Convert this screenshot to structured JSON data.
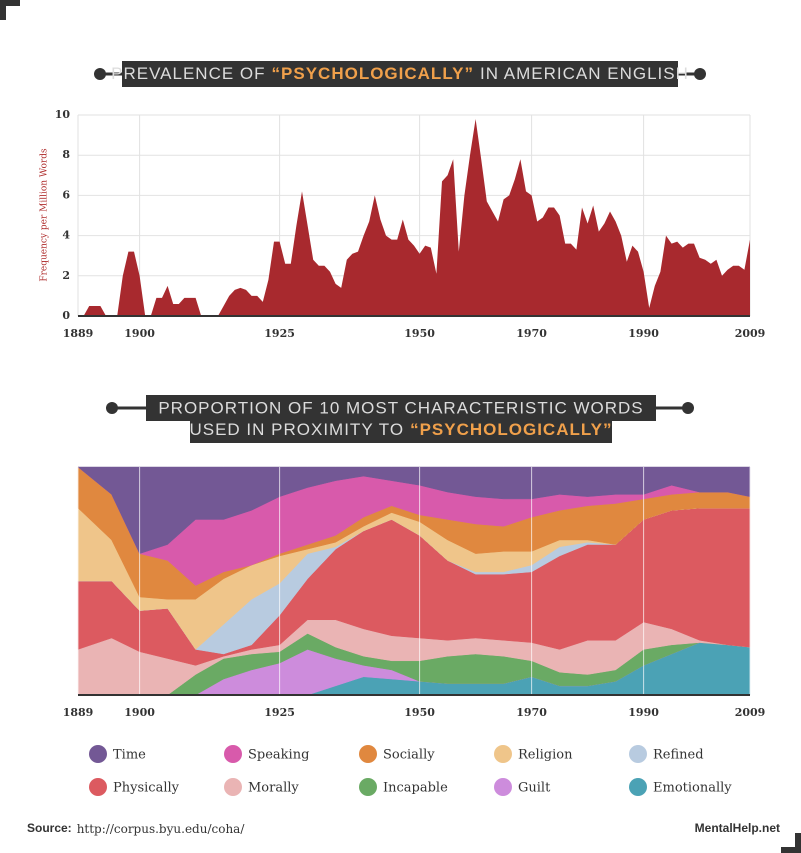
{
  "chart_data": [
    {
      "type": "area",
      "title": [
        "PREVALENCE OF",
        "“PSYCHOLOGICALLY”",
        "IN AMERICAN ENGLISH"
      ],
      "y_label": "Frequency per Million Words",
      "color": "#a8292e",
      "x": [
        1889,
        1890,
        1891,
        1892,
        1893,
        1894,
        1895,
        1896,
        1897,
        1898,
        1899,
        1900,
        1901,
        1902,
        1903,
        1904,
        1905,
        1906,
        1907,
        1908,
        1909,
        1910,
        1911,
        1912,
        1913,
        1914,
        1915,
        1916,
        1917,
        1918,
        1919,
        1920,
        1921,
        1922,
        1923,
        1924,
        1925,
        1926,
        1927,
        1928,
        1929,
        1930,
        1931,
        1932,
        1933,
        1934,
        1935,
        1936,
        1937,
        1938,
        1939,
        1940,
        1941,
        1942,
        1943,
        1944,
        1945,
        1946,
        1947,
        1948,
        1949,
        1950,
        1951,
        1952,
        1953,
        1954,
        1955,
        1956,
        1957,
        1958,
        1959,
        1960,
        1961,
        1962,
        1963,
        1964,
        1965,
        1966,
        1967,
        1968,
        1969,
        1970,
        1971,
        1972,
        1973,
        1974,
        1975,
        1976,
        1977,
        1978,
        1979,
        1980,
        1981,
        1982,
        1983,
        1984,
        1985,
        1986,
        1987,
        1988,
        1989,
        1990,
        1991,
        1992,
        1993,
        1994,
        1995,
        1996,
        1997,
        1998,
        1999,
        2000,
        2001,
        2002,
        2003,
        2004,
        2005,
        2006,
        2007,
        2008,
        2009
      ],
      "values": [
        0,
        0,
        0.5,
        0.5,
        0.5,
        0,
        0,
        0,
        2,
        3.2,
        3.2,
        2,
        0,
        0,
        0.9,
        0.9,
        1.5,
        0.6,
        0.6,
        0.9,
        0.9,
        0.9,
        0,
        0,
        0,
        0,
        0.5,
        1,
        1.3,
        1.4,
        1.3,
        1,
        1,
        0.7,
        1.8,
        3.7,
        3.7,
        2.6,
        2.6,
        4.5,
        6.2,
        4.5,
        2.8,
        2.5,
        2.5,
        2.2,
        1.6,
        1.4,
        2.8,
        3.1,
        3.2,
        4,
        4.7,
        6,
        4.8,
        4,
        3.8,
        3.8,
        4.8,
        3.8,
        3.5,
        3.1,
        3.5,
        3.4,
        2.1,
        6.7,
        7,
        7.8,
        3.2,
        6,
        8,
        9.8,
        7.8,
        5.7,
        5.2,
        4.7,
        5.8,
        6,
        6.8,
        7.8,
        6.2,
        6,
        4.7,
        4.9,
        5.4,
        5.4,
        5,
        3.6,
        3.6,
        3.3,
        5.4,
        4.6,
        5.5,
        4.2,
        4.6,
        5.2,
        4.7,
        4,
        2.7,
        3.5,
        3.2,
        2.2,
        0.4,
        1.5,
        2.2,
        4,
        3.6,
        3.7,
        3.4,
        3.6,
        3.6,
        2.9,
        2.8,
        2.6,
        2.8,
        2,
        2.3,
        2.5,
        2.5,
        2.3,
        3.8
      ],
      "xlim": [
        1889,
        2009
      ],
      "xticks": [
        1889,
        1900,
        1925,
        1950,
        1970,
        1990,
        2009
      ],
      "ylim": [
        0,
        10
      ],
      "yticks": [
        0,
        2,
        4,
        6,
        8,
        10
      ],
      "grid": true
    },
    {
      "type": "stacked_area",
      "title": [
        "PROPORTION OF 10 MOST CHARACTERISTIC WORDS",
        "USED IN PROXIMITY TO",
        "“PSYCHOLOGICALLY”"
      ],
      "x": [
        1889,
        1895,
        1900,
        1905,
        1910,
        1915,
        1920,
        1925,
        1930,
        1935,
        1940,
        1945,
        1950,
        1955,
        1960,
        1965,
        1970,
        1975,
        1980,
        1985,
        1990,
        1995,
        2000,
        2005,
        2009
      ],
      "xlim": [
        1889,
        2009
      ],
      "xticks": [
        1889,
        1900,
        1925,
        1950,
        1970,
        1990,
        2009
      ],
      "ylim": [
        0,
        100
      ],
      "grid": true,
      "series": [
        {
          "name": "Time",
          "color": "#735895",
          "values": [
            0,
            12,
            38,
            34,
            23,
            23,
            19,
            13,
            9,
            6,
            4,
            6,
            8,
            11,
            13,
            14,
            14,
            12,
            13,
            12,
            12,
            8,
            11,
            11,
            13
          ]
        },
        {
          "name": "Speaking",
          "color": "#d85aab",
          "values": [
            0,
            0,
            0,
            7,
            29,
            23,
            24,
            25,
            25,
            24,
            18,
            11,
            13,
            12,
            12,
            12,
            8,
            7,
            4,
            4,
            2,
            4,
            0,
            0,
            0
          ]
        },
        {
          "name": "Socially",
          "color": "#e0883f",
          "values": [
            18,
            20,
            19,
            17,
            6,
            3,
            0,
            1,
            2,
            3,
            4,
            3,
            3,
            9,
            13,
            11,
            15,
            13,
            15,
            18,
            9,
            7,
            7,
            7,
            5
          ]
        },
        {
          "name": "Religion",
          "color": "#efc58a",
          "values": [
            32,
            18,
            6,
            4,
            22,
            20,
            15,
            12,
            2,
            2,
            2,
            3,
            6,
            9,
            8,
            9,
            6,
            3,
            1,
            0,
            0,
            0,
            0,
            0,
            0
          ]
        },
        {
          "name": "Refined",
          "color": "#b8cbe0",
          "values": [
            0,
            0,
            0,
            0,
            0,
            13,
            20,
            14,
            11,
            1,
            0,
            0,
            0,
            0,
            1,
            1,
            3,
            4,
            1,
            0,
            0,
            0,
            0,
            0,
            0
          ]
        },
        {
          "name": "Physically",
          "color": "#dc5a60",
          "values": [
            30,
            25,
            18,
            22,
            7,
            1,
            2,
            13,
            18,
            31,
            43,
            51,
            45,
            35,
            28,
            29,
            31,
            41,
            42,
            42,
            45,
            52,
            58,
            60,
            61
          ]
        },
        {
          "name": "Morally",
          "color": "#eab4b4",
          "values": [
            20,
            25,
            19,
            16,
            4,
            1,
            2,
            3,
            6,
            12,
            12,
            11,
            10,
            7,
            7,
            7,
            8,
            10,
            15,
            13,
            12,
            7,
            1,
            0,
            0
          ]
        },
        {
          "name": "Incapable",
          "color": "#6aaa64",
          "values": [
            0,
            0,
            0,
            0,
            9,
            9,
            7,
            5,
            7,
            5,
            4,
            4,
            9,
            12,
            13,
            12,
            7,
            6,
            5,
            5,
            7,
            4,
            0,
            0,
            0
          ]
        },
        {
          "name": "Guilt",
          "color": "#cd8cdc",
          "values": [
            0,
            0,
            0,
            0,
            0,
            7,
            11,
            14,
            20,
            12,
            5,
            4,
            0,
            0,
            0,
            0,
            0,
            0,
            0,
            0,
            0,
            0,
            0,
            0,
            0
          ]
        },
        {
          "name": "Emotionally",
          "color": "#4ba2b5",
          "values": [
            0,
            0,
            0,
            0,
            0,
            0,
            0,
            0,
            0,
            4,
            8,
            7,
            6,
            5,
            5,
            5,
            8,
            4,
            4,
            6,
            13,
            18,
            23,
            22,
            21
          ]
        }
      ]
    }
  ],
  "footer": {
    "source_label": "Source:",
    "source_url": "http://corpus.byu.edu/coha/",
    "brand": "MentalHelp.net"
  }
}
